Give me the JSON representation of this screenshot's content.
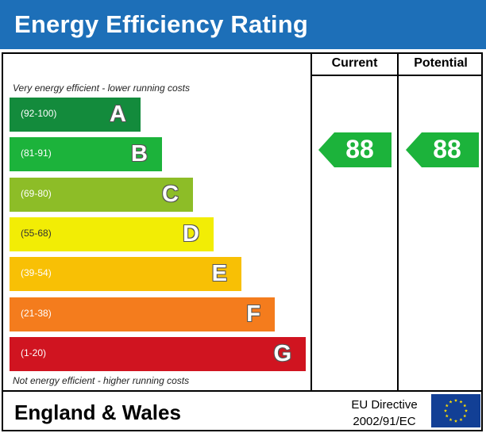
{
  "header": {
    "title": "Energy Efficiency Rating"
  },
  "columns": {
    "current": "Current",
    "potential": "Potential"
  },
  "notes": {
    "top": "Very energy efficient - lower running costs",
    "bottom": "Not energy efficient - higher running costs"
  },
  "chart_data": {
    "type": "bar",
    "title": "Energy Efficiency Rating",
    "categories": [
      "A",
      "B",
      "C",
      "D",
      "E",
      "F",
      "G"
    ],
    "ranges": [
      "(92-100)",
      "(81-91)",
      "(69-80)",
      "(55-68)",
      "(39-54)",
      "(21-38)",
      "(1-20)"
    ],
    "colors": [
      "#138b3c",
      "#1cb33b",
      "#8dbd27",
      "#f2ed05",
      "#f8c005",
      "#f47c1d",
      "#d01420"
    ],
    "current": 88,
    "potential": 88,
    "rating_color": "#1cb33b"
  },
  "footer": {
    "region": "England & Wales",
    "directive_line1": "EU Directive",
    "directive_line2": "2002/91/EC"
  },
  "icons": {
    "flag": "eu-flag-icon"
  }
}
